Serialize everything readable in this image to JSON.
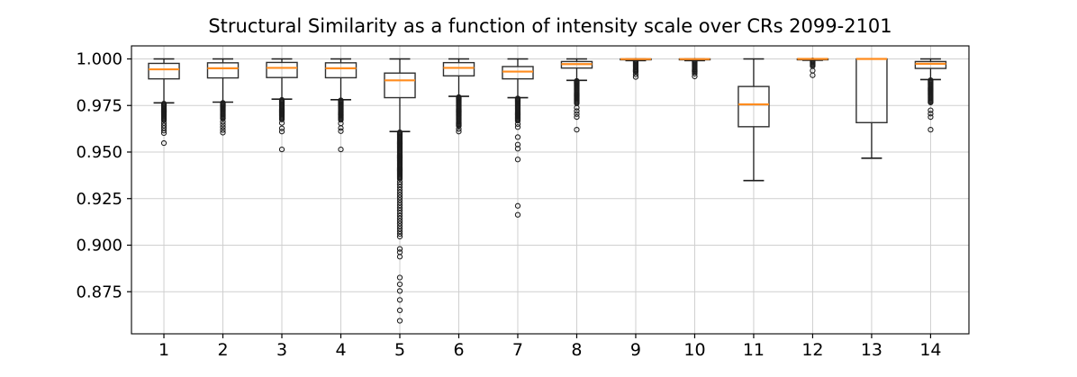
{
  "chart_data": {
    "type": "boxplot",
    "title": "Structural Similarity as a function of intensity scale over CRs 2099-2101",
    "xlabel": "",
    "ylabel": "",
    "categories": [
      "1",
      "2",
      "3",
      "4",
      "5",
      "6",
      "7",
      "8",
      "9",
      "10",
      "11",
      "12",
      "13",
      "14"
    ],
    "xlim": [
      0.45,
      14.65
    ],
    "ylim": [
      0.8524,
      1.007
    ],
    "yticks": [
      {
        "v": 1.0,
        "label": "1.000"
      },
      {
        "v": 0.975,
        "label": "0.975"
      },
      {
        "v": 0.95,
        "label": "0.950"
      },
      {
        "v": 0.925,
        "label": "0.925"
      },
      {
        "v": 0.9,
        "label": "0.900"
      },
      {
        "v": 0.875,
        "label": "0.875"
      }
    ],
    "grid": true,
    "legend": "none",
    "colors": {
      "median": "#ff8c1f",
      "box_edge": "#2f2f2f",
      "whisker": "#1c1c1c",
      "flier": "#1c1c1c",
      "grid": "#cfcfcf",
      "spine": "#000000",
      "background": "#ffffff"
    },
    "boxes": [
      {
        "label": "1",
        "whislo": 0.9764,
        "q1": 0.9893,
        "med": 0.9944,
        "q3": 0.9976,
        "whishi": 1.0,
        "flier_ranges": [
          {
            "from": 0.976,
            "to": 0.967,
            "step": 0.0005
          }
        ],
        "fliers": [
          0.9656,
          0.9642,
          0.9629,
          0.9615,
          0.9602,
          0.9548
        ]
      },
      {
        "label": "2",
        "whislo": 0.9768,
        "q1": 0.9898,
        "med": 0.995,
        "q3": 0.9979,
        "whishi": 1.0,
        "flier_ranges": [
          {
            "from": 0.9764,
            "to": 0.9678,
            "step": 0.0005
          }
        ],
        "fliers": [
          0.9663,
          0.9648,
          0.9633,
          0.9618,
          0.9604
        ]
      },
      {
        "label": "3",
        "whislo": 0.9784,
        "q1": 0.99,
        "med": 0.9952,
        "q3": 0.9981,
        "whishi": 1.0,
        "flier_ranges": [
          {
            "from": 0.978,
            "to": 0.9672,
            "step": 0.0005
          }
        ],
        "fliers": [
          0.9656,
          0.9627,
          0.961,
          0.9514
        ]
      },
      {
        "label": "4",
        "whislo": 0.9781,
        "q1": 0.9899,
        "med": 0.995,
        "q3": 0.9979,
        "whishi": 1.0,
        "flier_ranges": [
          {
            "from": 0.9778,
            "to": 0.967,
            "step": 0.0005
          }
        ],
        "fliers": [
          0.9654,
          0.9629,
          0.9612,
          0.9514
        ]
      },
      {
        "label": "5",
        "whislo": 0.961,
        "q1": 0.9792,
        "med": 0.9885,
        "q3": 0.9924,
        "whishi": 1.0,
        "flier_ranges": [
          {
            "from": 0.9606,
            "to": 0.9352,
            "step": 0.0005
          },
          {
            "from": 0.934,
            "to": 0.9035,
            "step": 0.0014
          }
        ],
        "fliers": [
          0.898,
          0.8962,
          0.8938,
          0.8826,
          0.879,
          0.8754,
          0.8706,
          0.865,
          0.8594
        ]
      },
      {
        "label": "6",
        "whislo": 0.9799,
        "q1": 0.9909,
        "med": 0.9952,
        "q3": 0.998,
        "whishi": 1.0,
        "flier_ranges": [
          {
            "from": 0.9795,
            "to": 0.964,
            "step": 0.0005
          }
        ],
        "fliers": [
          0.9624,
          0.961
        ]
      },
      {
        "label": "7",
        "whislo": 0.9792,
        "q1": 0.9893,
        "med": 0.9932,
        "q3": 0.9959,
        "whishi": 1.0,
        "flier_ranges": [
          {
            "from": 0.9788,
            "to": 0.9668,
            "step": 0.0005
          }
        ],
        "fliers": [
          0.965,
          0.9634,
          0.958,
          0.954,
          0.9518,
          0.946,
          0.9211,
          0.9163
        ]
      },
      {
        "label": "8",
        "whislo": 0.9885,
        "q1": 0.9951,
        "med": 0.9972,
        "q3": 0.9986,
        "whishi": 1.0,
        "flier_ranges": [
          {
            "from": 0.9882,
            "to": 0.976,
            "step": 0.0005
          }
        ],
        "fliers": [
          0.9738,
          0.972,
          0.9704,
          0.9688,
          0.962
        ]
      },
      {
        "label": "9",
        "whislo": 0.9991,
        "q1": 0.9996,
        "med": 0.9999,
        "q3": 1.0,
        "whishi": 1.0,
        "flier_ranges": [
          {
            "from": 0.999,
            "to": 0.9926,
            "step": 0.0005
          }
        ],
        "fliers": [
          0.9917,
          0.9903
        ]
      },
      {
        "label": "10",
        "whislo": 0.9991,
        "q1": 0.9996,
        "med": 0.9999,
        "q3": 1.0,
        "whishi": 1.0,
        "flier_ranges": [
          {
            "from": 0.999,
            "to": 0.993,
            "step": 0.0005
          }
        ],
        "fliers": [
          0.9921,
          0.9906
        ]
      },
      {
        "label": "11",
        "whislo": 0.9347,
        "q1": 0.9636,
        "med": 0.9756,
        "q3": 0.9852,
        "whishi": 1.0,
        "flier_ranges": [],
        "fliers": []
      },
      {
        "label": "12",
        "whislo": 0.9993,
        "q1": 0.9997,
        "med": 1.0,
        "q3": 1.0,
        "whishi": 1.0,
        "flier_ranges": [
          {
            "from": 0.9992,
            "to": 0.9958,
            "step": 0.0005
          }
        ],
        "fliers": [
          0.9937,
          0.9912
        ]
      },
      {
        "label": "13",
        "whislo": 0.9467,
        "q1": 0.9658,
        "med": 1.0,
        "q3": 1.0,
        "whishi": 1.0,
        "flier_ranges": [],
        "fliers": []
      },
      {
        "label": "14",
        "whislo": 0.9889,
        "q1": 0.9949,
        "med": 0.9974,
        "q3": 0.9986,
        "whishi": 1.0,
        "flier_ranges": [
          {
            "from": 0.9886,
            "to": 0.9764,
            "step": 0.0005
          }
        ],
        "fliers": [
          0.9724,
          0.9706,
          0.9688,
          0.962
        ]
      }
    ]
  }
}
